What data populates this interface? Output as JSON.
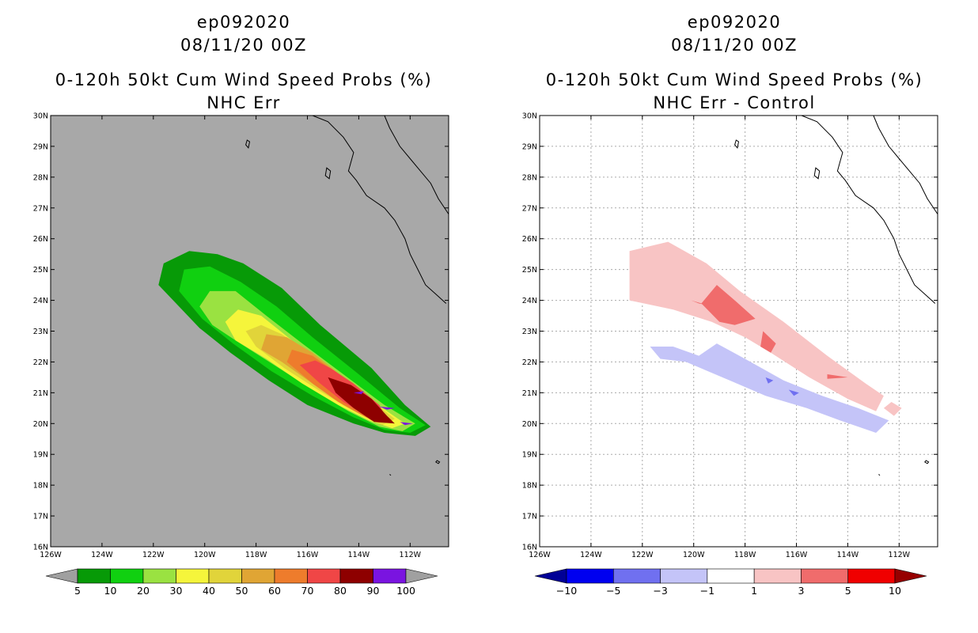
{
  "chart_data": [
    {
      "type": "heatmap",
      "title_lines": [
        "ep092020",
        "08/11/20 00Z",
        "0-120h 50kt Cum Wind Speed Probs (%)",
        "NHC Err"
      ],
      "xlabels": [
        "126W",
        "124W",
        "122W",
        "120W",
        "118W",
        "116W",
        "114W",
        "112W"
      ],
      "ylabels": [
        "16N",
        "17N",
        "18N",
        "19N",
        "20N",
        "21N",
        "22N",
        "23N",
        "24N",
        "25N",
        "26N",
        "27N",
        "28N",
        "29N",
        "30N"
      ],
      "xlim": [
        -126,
        -110.5
      ],
      "ylim": [
        16,
        30
      ],
      "grid": false,
      "background_color": "#a8a8a8",
      "contour_levels": [
        5,
        10,
        20,
        30,
        40,
        50,
        60,
        70,
        80,
        90,
        100
      ],
      "colorbar": {
        "labels": [
          "5",
          "10",
          "20",
          "30",
          "40",
          "50",
          "60",
          "70",
          "80",
          "90",
          "100"
        ],
        "colors": [
          "#a0a0a0",
          "#079a07",
          "#10d010",
          "#9ae241",
          "#f5f53b",
          "#e1d43a",
          "#e0a534",
          "#ee7c2c",
          "#f04646",
          "#8e0000",
          "#7a14e0",
          "#a0a0a0"
        ]
      },
      "regions": [
        {
          "level": 5,
          "color": "#079a07",
          "points": [
            [
              -121.8,
              24.5
            ],
            [
              -121.6,
              25.2
            ],
            [
              -120.6,
              25.6
            ],
            [
              -119.5,
              25.5
            ],
            [
              -118.5,
              25.2
            ],
            [
              -117,
              24.4
            ],
            [
              -115.5,
              23.2
            ],
            [
              -113.5,
              21.8
            ],
            [
              -112.2,
              20.6
            ],
            [
              -111.2,
              19.9
            ],
            [
              -111.8,
              19.6
            ],
            [
              -113,
              19.7
            ],
            [
              -114.2,
              20
            ],
            [
              -116,
              20.6
            ],
            [
              -117.5,
              21.4
            ],
            [
              -119,
              22.3
            ],
            [
              -120.2,
              23.1
            ]
          ]
        },
        {
          "level": 10,
          "color": "#10d010",
          "points": [
            [
              -121,
              24.3
            ],
            [
              -120.8,
              25.0
            ],
            [
              -119.8,
              25.1
            ],
            [
              -118.6,
              24.6
            ],
            [
              -117.2,
              23.8
            ],
            [
              -115.8,
              22.8
            ],
            [
              -114,
              21.6
            ],
            [
              -112.4,
              20.5
            ],
            [
              -111.4,
              19.95
            ],
            [
              -112,
              19.7
            ],
            [
              -113,
              19.8
            ],
            [
              -114.2,
              20.2
            ],
            [
              -115.8,
              20.9
            ],
            [
              -117.4,
              21.7
            ],
            [
              -118.9,
              22.6
            ],
            [
              -120.1,
              23.4
            ]
          ]
        },
        {
          "level": 20,
          "color": "#9ae241",
          "points": [
            [
              -120.2,
              23.8
            ],
            [
              -119.8,
              24.3
            ],
            [
              -118.8,
              24.3
            ],
            [
              -117.6,
              23.5
            ],
            [
              -116.2,
              22.6
            ],
            [
              -114.6,
              21.6
            ],
            [
              -113,
              20.6
            ],
            [
              -111.8,
              20.0
            ],
            [
              -112.3,
              19.75
            ],
            [
              -113.2,
              19.9
            ],
            [
              -114.4,
              20.4
            ],
            [
              -115.8,
              21.1
            ],
            [
              -117.3,
              21.9
            ],
            [
              -118.8,
              22.7
            ],
            [
              -119.7,
              23.2
            ]
          ]
        },
        {
          "level": 30,
          "color": "#f5f53b",
          "points": [
            [
              -119.2,
              23.3
            ],
            [
              -118.7,
              23.7
            ],
            [
              -117.8,
              23.5
            ],
            [
              -116.6,
              22.7
            ],
            [
              -115.2,
              21.8
            ],
            [
              -113.6,
              20.8
            ],
            [
              -112.2,
              20.0
            ],
            [
              -112.7,
              19.85
            ],
            [
              -113.6,
              20.1
            ],
            [
              -114.8,
              20.6
            ],
            [
              -116.2,
              21.3
            ],
            [
              -117.6,
              22.1
            ],
            [
              -118.8,
              22.7
            ]
          ]
        },
        {
          "level": 40,
          "color": "#e1d43a",
          "points": [
            [
              -118.4,
              23.0
            ],
            [
              -117.8,
              23.2
            ],
            [
              -117.0,
              22.9
            ],
            [
              -115.6,
              22.1
            ],
            [
              -114.2,
              21.2
            ],
            [
              -112.6,
              20.15
            ],
            [
              -113.1,
              19.95
            ],
            [
              -114.3,
              20.45
            ],
            [
              -115.6,
              21.1
            ],
            [
              -116.9,
              21.8
            ],
            [
              -118.0,
              22.5
            ]
          ]
        },
        {
          "level": 50,
          "color": "#e0a534",
          "points": [
            [
              -117.6,
              22.9
            ],
            [
              -116.8,
              22.8
            ],
            [
              -115.8,
              22.3
            ],
            [
              -114.6,
              21.5
            ],
            [
              -113.4,
              20.6
            ],
            [
              -112.7,
              20.1
            ],
            [
              -113.5,
              20.1
            ],
            [
              -114.6,
              20.6
            ],
            [
              -115.8,
              21.3
            ],
            [
              -117.0,
              22.0
            ],
            [
              -117.8,
              22.4
            ]
          ]
        },
        {
          "level": 60,
          "color": "#ee7c2c",
          "points": [
            [
              -116.6,
              22.4
            ],
            [
              -115.8,
              22.2
            ],
            [
              -114.8,
              21.6
            ],
            [
              -113.6,
              20.8
            ],
            [
              -112.9,
              20.2
            ],
            [
              -113.7,
              20.2
            ],
            [
              -114.8,
              20.7
            ],
            [
              -115.8,
              21.3
            ],
            [
              -116.8,
              22.0
            ]
          ]
        },
        {
          "level": 70,
          "color": "#f04646",
          "points": [
            [
              -115.7,
              22.05
            ],
            [
              -115.1,
              21.8
            ],
            [
              -114.2,
              21.3
            ],
            [
              -113.2,
              20.6
            ],
            [
              -112.9,
              20.15
            ],
            [
              -113.6,
              20.2
            ],
            [
              -114.6,
              20.7
            ],
            [
              -115.5,
              21.3
            ],
            [
              -116.3,
              21.9
            ]
          ]
        },
        {
          "level": 80,
          "color": "#8e0000",
          "points": [
            [
              -115.2,
              21.5
            ],
            [
              -114.3,
              21.25
            ],
            [
              -113.5,
              20.8
            ],
            [
              -112.9,
              20.25
            ],
            [
              -112.6,
              20.0
            ],
            [
              -113.4,
              20.05
            ],
            [
              -114.2,
              20.5
            ],
            [
              -114.9,
              21.0
            ]
          ]
        },
        {
          "level": 90,
          "color": "#7a14e0",
          "points": [
            [
              -114.2,
              21.0
            ],
            [
              -113.8,
              21.05
            ],
            [
              -113.9,
              20.95
            ]
          ]
        },
        {
          "level": 90,
          "color": "#7a14e0",
          "points": [
            [
              -113.2,
              20.55
            ],
            [
              -112.6,
              20.5
            ],
            [
              -112.9,
              20.45
            ]
          ]
        },
        {
          "level": 90,
          "color": "#7a14e0",
          "points": [
            [
              -112.4,
              20.05
            ],
            [
              -111.9,
              20.0
            ],
            [
              -112.2,
              19.95
            ]
          ]
        }
      ]
    },
    {
      "type": "heatmap",
      "title_lines": [
        "ep092020",
        "08/11/20 00Z",
        "0-120h 50kt Cum Wind Speed Probs (%)",
        "NHC Err - Control"
      ],
      "xlabels": [
        "126W",
        "124W",
        "122W",
        "120W",
        "118W",
        "116W",
        "114W",
        "112W"
      ],
      "ylabels": [
        "16N",
        "17N",
        "18N",
        "19N",
        "20N",
        "21N",
        "22N",
        "23N",
        "24N",
        "25N",
        "26N",
        "27N",
        "28N",
        "29N",
        "30N"
      ],
      "xlim": [
        -126,
        -110.5
      ],
      "ylim": [
        16,
        30
      ],
      "grid": true,
      "background_color": "#ffffff",
      "contour_levels": [
        -10,
        -5,
        -3,
        -1,
        1,
        3,
        5,
        10
      ],
      "colorbar": {
        "labels": [
          "-10",
          "-5",
          "-3",
          "-1",
          "1",
          "3",
          "5",
          "10"
        ],
        "colors": [
          "#000096",
          "#0000f0",
          "#7070f0",
          "#c4c4f8",
          "#ffffff",
          "#f8c4c4",
          "#f06c6c",
          "#f00000",
          "#960000"
        ]
      },
      "regions": [
        {
          "level": 1,
          "color": "#f8c4c4",
          "points": [
            [
              -122.5,
              24.0
            ],
            [
              -122.5,
              25.6
            ],
            [
              -121.0,
              25.9
            ],
            [
              -119.5,
              25.2
            ],
            [
              -118.2,
              24.3
            ],
            [
              -116.5,
              23.3
            ],
            [
              -114.8,
              22.2
            ],
            [
              -113.3,
              21.3
            ],
            [
              -112.6,
              20.9
            ],
            [
              -112.9,
              20.4
            ],
            [
              -114.0,
              20.8
            ],
            [
              -115.5,
              21.5
            ],
            [
              -117.0,
              22.3
            ],
            [
              -118.0,
              22.8
            ],
            [
              -119.3,
              23.3
            ],
            [
              -120.8,
              23.7
            ]
          ]
        },
        {
          "level": 1,
          "color": "#f8c4c4",
          "points": [
            [
              -112.3,
              20.7
            ],
            [
              -111.9,
              20.5
            ],
            [
              -112.2,
              20.25
            ],
            [
              -112.6,
              20.5
            ]
          ]
        },
        {
          "level": 3,
          "color": "#f06c6c",
          "points": [
            [
              -119.7,
              23.9
            ],
            [
              -119.1,
              24.5
            ],
            [
              -118.4,
              24.0
            ],
            [
              -117.6,
              23.4
            ],
            [
              -118.4,
              23.2
            ],
            [
              -119.0,
              23.3
            ]
          ]
        },
        {
          "level": 3,
          "color": "#f06c6c",
          "points": [
            [
              -120.1,
              24.0
            ],
            [
              -119.8,
              23.9
            ],
            [
              -119.5,
              23.85
            ]
          ]
        },
        {
          "level": 3,
          "color": "#f06c6c",
          "points": [
            [
              -117.3,
              23.0
            ],
            [
              -116.8,
              22.6
            ],
            [
              -117.0,
              22.3
            ],
            [
              -117.4,
              22.5
            ]
          ]
        },
        {
          "level": 3,
          "color": "#f06c6c",
          "points": [
            [
              -114.8,
              21.6
            ],
            [
              -114.0,
              21.5
            ],
            [
              -114.8,
              21.45
            ]
          ]
        },
        {
          "level": -1,
          "color": "#c4c4f8",
          "points": [
            [
              -121.7,
              22.5
            ],
            [
              -120.8,
              22.5
            ],
            [
              -119.8,
              22.2
            ],
            [
              -119.1,
              22.6
            ],
            [
              -118.0,
              22.1
            ],
            [
              -116.5,
              21.4
            ],
            [
              -115.0,
              20.9
            ],
            [
              -113.6,
              20.5
            ],
            [
              -112.4,
              20.1
            ],
            [
              -112.9,
              19.7
            ],
            [
              -114.3,
              20.1
            ],
            [
              -115.6,
              20.5
            ],
            [
              -117.2,
              20.9
            ],
            [
              -118.6,
              21.4
            ],
            [
              -120.3,
              22.0
            ],
            [
              -121.3,
              22.1
            ]
          ]
        },
        {
          "level": -3,
          "color": "#7070f0",
          "points": [
            [
              -117.2,
              21.5
            ],
            [
              -116.9,
              21.4
            ],
            [
              -117.1,
              21.3
            ]
          ]
        },
        {
          "level": -3,
          "color": "#7070f0",
          "points": [
            [
              -116.3,
              21.1
            ],
            [
              -115.9,
              21.0
            ],
            [
              -116.1,
              20.9
            ]
          ]
        }
      ]
    }
  ]
}
